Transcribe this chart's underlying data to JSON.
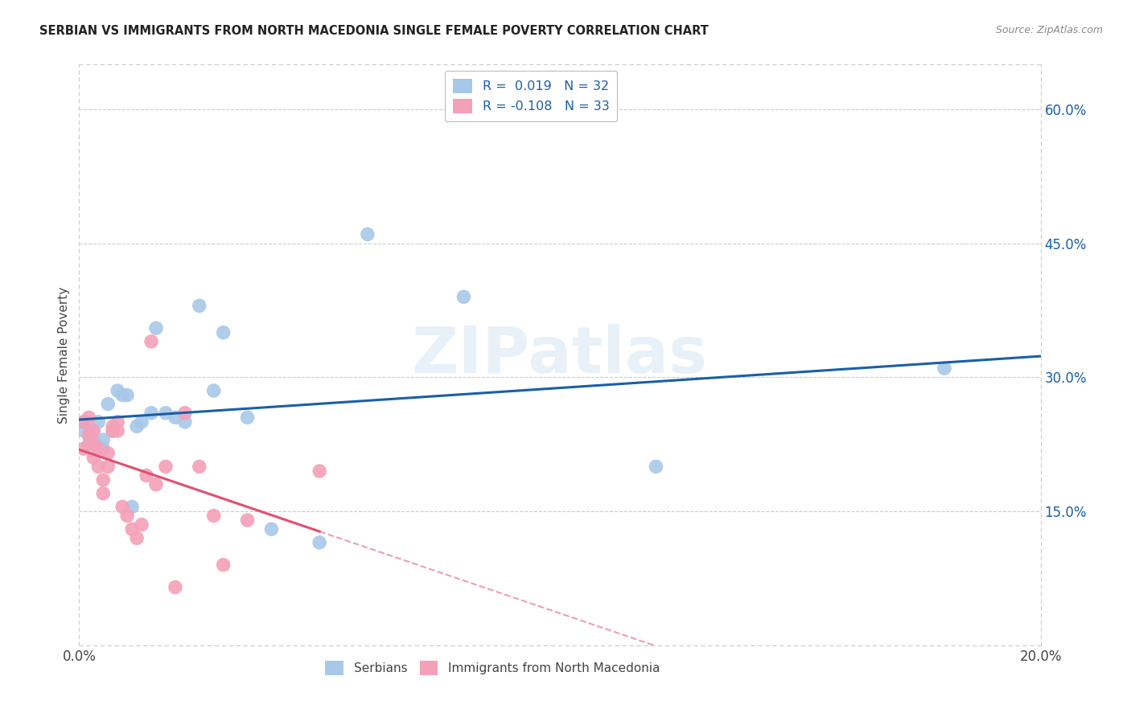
{
  "title": "SERBIAN VS IMMIGRANTS FROM NORTH MACEDONIA SINGLE FEMALE POVERTY CORRELATION CHART",
  "source": "Source: ZipAtlas.com",
  "ylabel": "Single Female Poverty",
  "xlim": [
    0.0,
    0.2
  ],
  "ylim": [
    0.0,
    0.65
  ],
  "yticks": [
    0.15,
    0.3,
    0.45,
    0.6
  ],
  "ytick_labels": [
    "15.0%",
    "30.0%",
    "45.0%",
    "60.0%"
  ],
  "watermark": "ZIPatlas",
  "legend_labels": [
    "Serbians",
    "Immigrants from North Macedonia"
  ],
  "R_serbian": 0.019,
  "N_serbian": 32,
  "R_macedonian": -0.108,
  "N_macedonian": 33,
  "color_serbian": "#a8c8e8",
  "color_macedonian": "#f4a0b8",
  "line_color_serbian": "#1a5fa8",
  "line_color_macedonian": "#e05070",
  "serbian_x": [
    0.001,
    0.001,
    0.002,
    0.002,
    0.003,
    0.003,
    0.004,
    0.005,
    0.005,
    0.006,
    0.007,
    0.008,
    0.009,
    0.01,
    0.011,
    0.012,
    0.013,
    0.015,
    0.016,
    0.018,
    0.02,
    0.022,
    0.025,
    0.028,
    0.03,
    0.035,
    0.04,
    0.05,
    0.06,
    0.08,
    0.12,
    0.18
  ],
  "serbian_y": [
    0.25,
    0.24,
    0.235,
    0.225,
    0.24,
    0.23,
    0.25,
    0.22,
    0.23,
    0.27,
    0.24,
    0.285,
    0.28,
    0.28,
    0.155,
    0.245,
    0.25,
    0.26,
    0.355,
    0.26,
    0.255,
    0.25,
    0.38,
    0.285,
    0.35,
    0.255,
    0.13,
    0.115,
    0.46,
    0.39,
    0.2,
    0.31
  ],
  "macedonian_x": [
    0.001,
    0.001,
    0.002,
    0.002,
    0.003,
    0.003,
    0.003,
    0.004,
    0.004,
    0.005,
    0.005,
    0.006,
    0.006,
    0.007,
    0.007,
    0.008,
    0.008,
    0.009,
    0.01,
    0.011,
    0.012,
    0.013,
    0.014,
    0.015,
    0.016,
    0.018,
    0.02,
    0.022,
    0.025,
    0.028,
    0.03,
    0.035,
    0.05
  ],
  "macedonian_y": [
    0.25,
    0.22,
    0.255,
    0.235,
    0.24,
    0.225,
    0.21,
    0.22,
    0.2,
    0.185,
    0.17,
    0.2,
    0.215,
    0.245,
    0.24,
    0.25,
    0.24,
    0.155,
    0.145,
    0.13,
    0.12,
    0.135,
    0.19,
    0.34,
    0.18,
    0.2,
    0.065,
    0.26,
    0.2,
    0.145,
    0.09,
    0.14,
    0.195
  ]
}
